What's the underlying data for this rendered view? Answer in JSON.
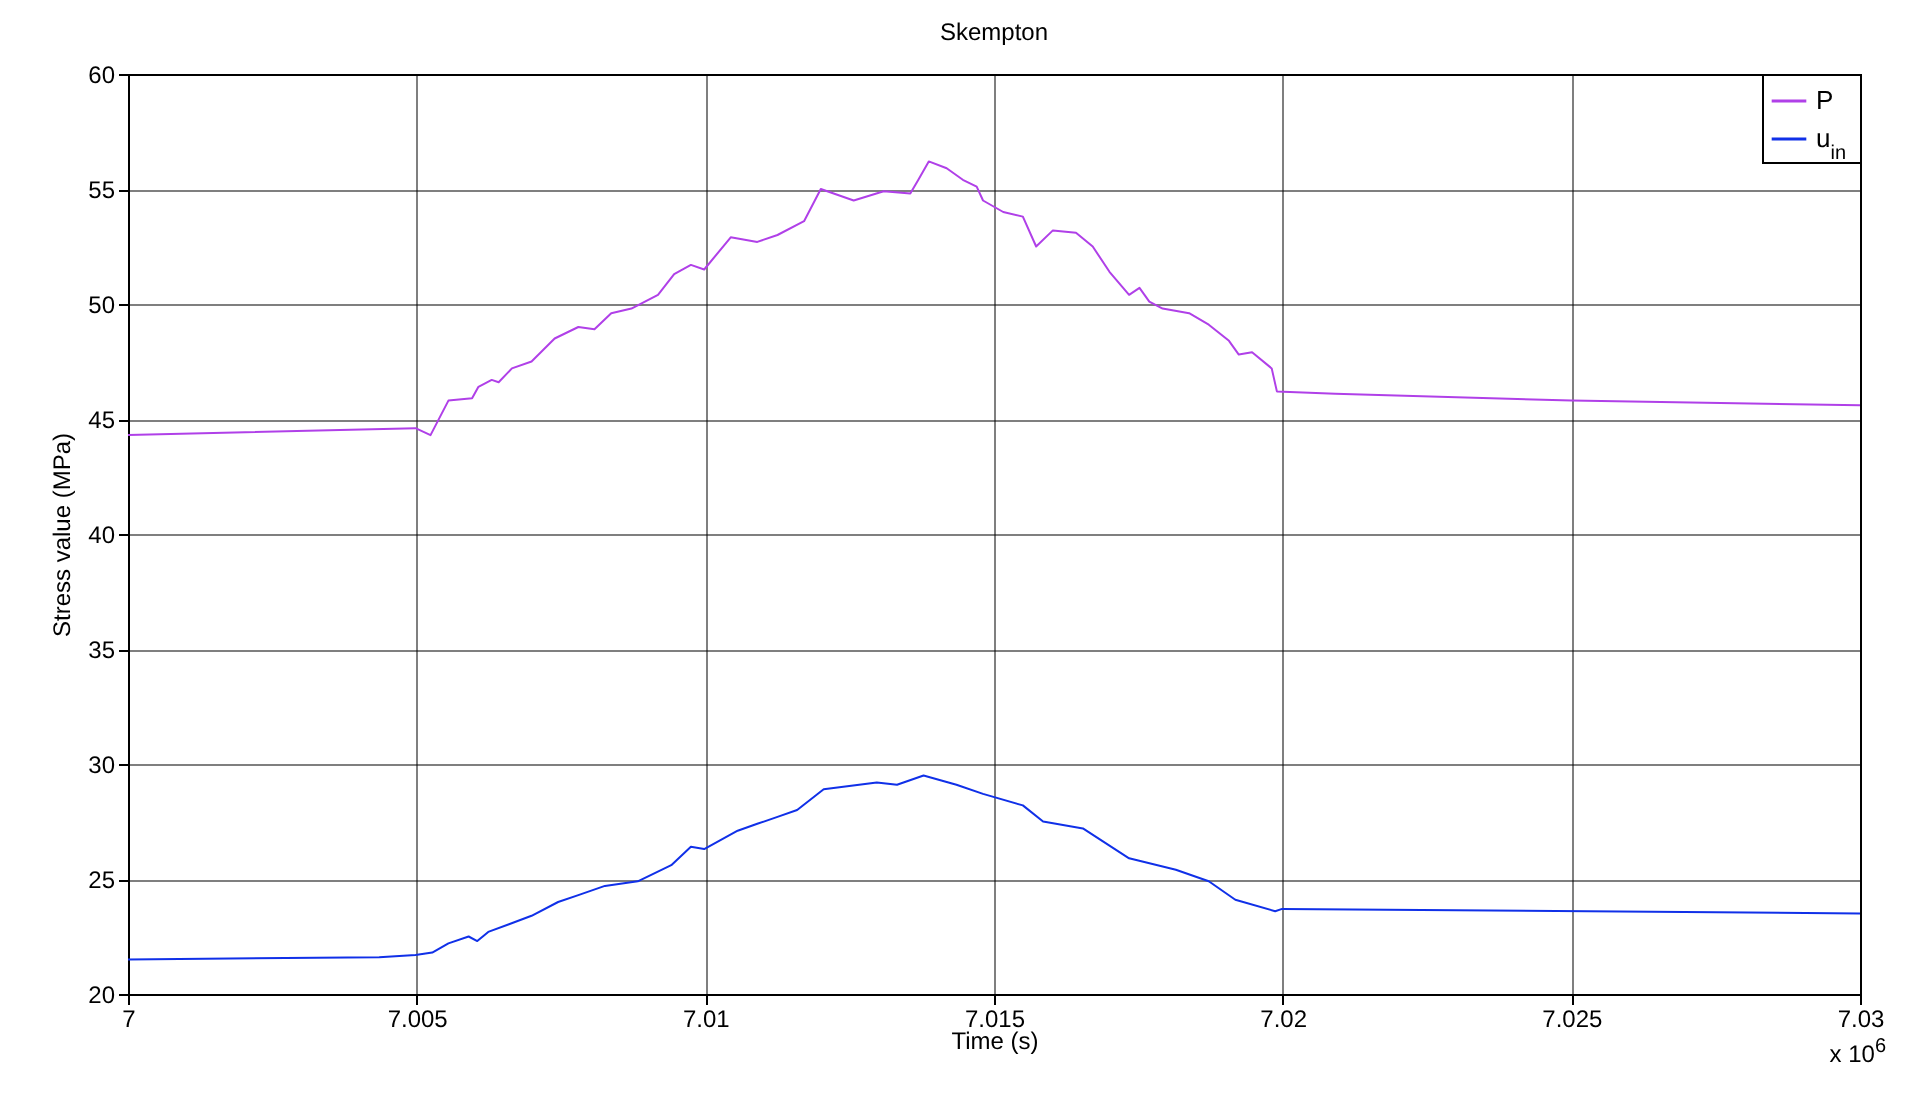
{
  "chart_data": {
    "type": "line",
    "title": "Skempton",
    "xlabel": "Time (s)",
    "ylabel": "Stress value (MPa)",
    "annotations": [
      "x 10$^{6}$"
    ],
    "xlim": [
      7,
      7.03
    ],
    "xticks": [
      7,
      7.005,
      7.01,
      7.015,
      7.02,
      7.025,
      7.03
    ],
    "ylim": [
      20,
      60
    ],
    "yticks": [
      20,
      25,
      30,
      35,
      40,
      45,
      50,
      55,
      60
    ],
    "grid": true,
    "legend": "top right",
    "marker": "none",
    "line_style": "solid",
    "series": [
      {
        "name": "P",
        "color": "#b040e8",
        "x": [
          7,
          7.00498,
          7.00524,
          7.00555,
          7.00596,
          7.00607,
          7.0063,
          7.00642,
          7.00665,
          7.00699,
          7.00739,
          7.0078,
          7.00808,
          7.00837,
          7.00872,
          7.00918,
          7.00946,
          7.00975,
          7.00998,
          7.01044,
          7.0109,
          7.01125,
          7.01171,
          7.012,
          7.01257,
          7.01309,
          7.01355,
          7.01369,
          7.01387,
          7.01418,
          7.01446,
          7.0147,
          7.01481,
          7.01516,
          7.0155,
          7.01573,
          7.01602,
          7.01642,
          7.01671,
          7.017,
          7.01734,
          7.01752,
          7.01769,
          7.01792,
          7.01838,
          7.01872,
          7.01907,
          7.01924,
          7.01947,
          7.01981,
          7.0199,
          7.02091,
          7.025,
          7.03
        ],
        "values": [
          44.3,
          44.6,
          44.3,
          45.8,
          45.9,
          46.4,
          46.7,
          46.6,
          47.2,
          47.5,
          48.5,
          49.0,
          48.9,
          49.6,
          49.8,
          50.4,
          51.3,
          51.7,
          51.5,
          52.9,
          52.7,
          53.0,
          53.6,
          55.0,
          54.5,
          54.9,
          54.8,
          55.4,
          56.2,
          55.9,
          55.4,
          55.1,
          54.5,
          54.0,
          53.8,
          52.5,
          53.2,
          53.1,
          52.5,
          51.4,
          50.4,
          50.7,
          50.1,
          49.8,
          49.6,
          49.1,
          48.4,
          47.8,
          47.9,
          47.2,
          46.2,
          46.1,
          45.8,
          45.6
        ]
      },
      {
        "name": "u$_{in}$",
        "color": "#1030e8",
        "x": [
          7,
          7.00435,
          7.00498,
          7.00527,
          7.00555,
          7.0059,
          7.00605,
          7.00624,
          7.00699,
          7.00745,
          7.0078,
          7.00826,
          7.00883,
          7.00941,
          7.00975,
          7.00998,
          7.01056,
          7.0109,
          7.01125,
          7.01159,
          7.01205,
          7.01297,
          7.01332,
          7.01378,
          7.01435,
          7.01481,
          7.0155,
          7.01585,
          7.01654,
          7.01734,
          7.01815,
          7.01872,
          7.01918,
          7.01987,
          7.01999,
          7.03
        ],
        "values": [
          21.5,
          21.6,
          21.7,
          21.8,
          22.2,
          22.5,
          22.3,
          22.7,
          23.4,
          24.0,
          24.3,
          24.7,
          24.9,
          25.6,
          26.4,
          26.3,
          27.1,
          27.4,
          27.7,
          28.0,
          28.9,
          29.2,
          29.1,
          29.5,
          29.1,
          28.7,
          28.2,
          27.5,
          27.2,
          25.9,
          25.4,
          24.9,
          24.1,
          23.6,
          23.7,
          23.5
        ]
      }
    ]
  }
}
